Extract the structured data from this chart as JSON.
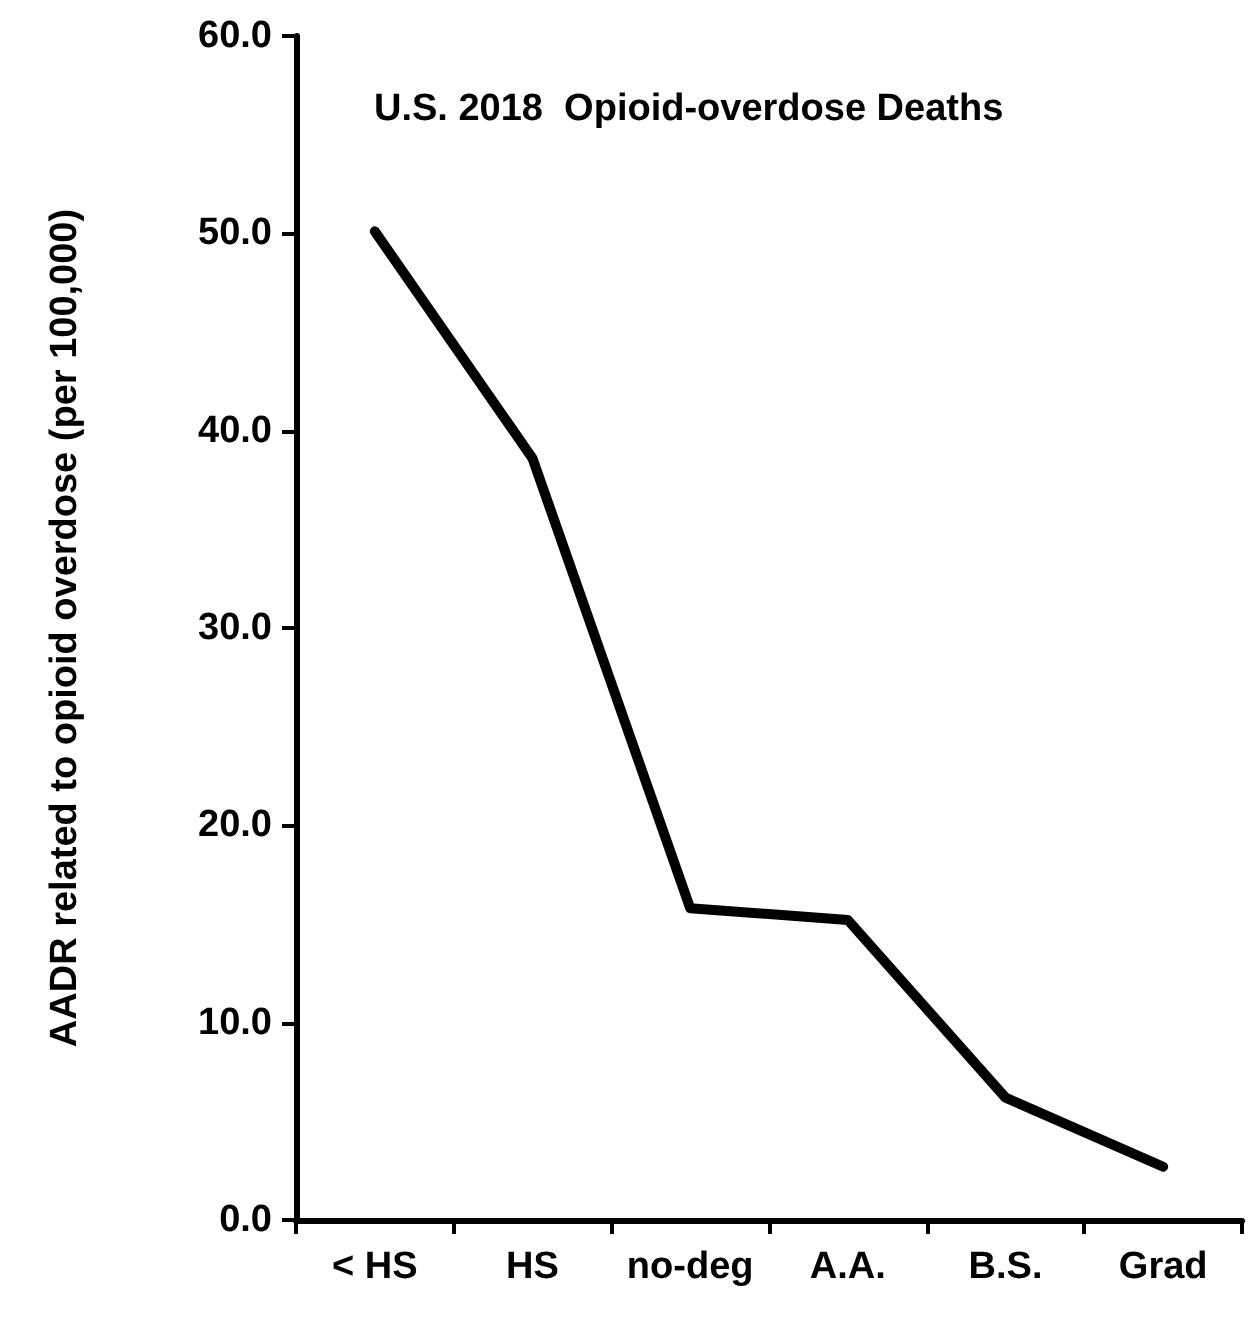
{
  "chart_data": {
    "type": "line",
    "title": "U.S. 2018  Opioid-overdose Deaths",
    "ylabel": "AADR related to opioid overdose (per 100,000)",
    "categories": [
      "< HS",
      "HS",
      "no-deg",
      "A.A.",
      "B.S.",
      "Grad"
    ],
    "series": [
      {
        "color": "#000000",
        "values": [
          50.1,
          38.6,
          15.8,
          15.2,
          6.2,
          2.7
        ]
      }
    ],
    "ylim": [
      0,
      60
    ],
    "yticks": [
      {
        "value": 0,
        "label": "0.0"
      },
      {
        "value": 10,
        "label": "10.0"
      },
      {
        "value": 20,
        "label": "20.0"
      },
      {
        "value": 30,
        "label": "30.0"
      },
      {
        "value": 40,
        "label": "40.0"
      },
      {
        "value": 50,
        "label": "50.0"
      },
      {
        "value": 60,
        "label": "60.0"
      }
    ],
    "grid": false,
    "marker": "none",
    "line_style": "solid"
  }
}
